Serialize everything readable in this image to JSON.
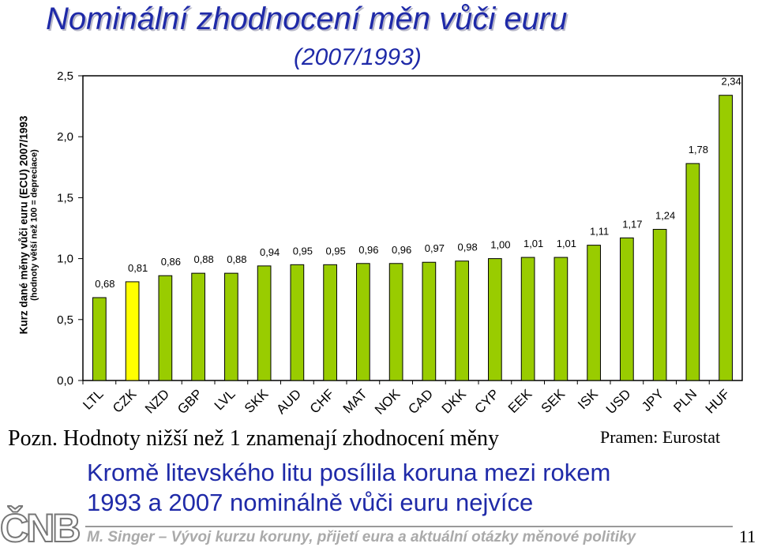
{
  "title": "Nominální zhodnocení měn vůči euru",
  "subtitle": "(2007/1993)",
  "ylabel_line1": "Kurz dané měny vůči euru (ECU) 2007/1993",
  "ylabel_line2": "(hodnoty větší než 100 = depreciace)",
  "note": "Pozn. Hodnoty nižší než 1 znamenají zhodnocení měny",
  "source": "Pramen: Eurostat",
  "highlight_line1": "Kromě litevského litu posílila koruna mezi rokem",
  "highlight_line2": "1993 a 2007 nominálně vůči euru nejvíce",
  "logo_text": "ČNB",
  "footer": "M. Singer – Vývoj kurzu koruny, přijetí eura a aktuální otázky měnové politiky",
  "page_number": "11",
  "colors": {
    "bar": "#99cc00",
    "highlight_bar": "#ffff00",
    "title": "#1f2aa8",
    "highlight_text": "#1f2aa8"
  },
  "chart_data": {
    "type": "bar",
    "categories": [
      "LTL",
      "CZK",
      "NZD",
      "GBP",
      "LVL",
      "SKK",
      "AUD",
      "CHF",
      "MAT",
      "NOK",
      "CAD",
      "DKK",
      "CYP",
      "EEK",
      "SEK",
      "ISK",
      "USD",
      "JPY",
      "PLN",
      "HUF"
    ],
    "values": [
      0.68,
      0.81,
      0.86,
      0.88,
      0.88,
      0.94,
      0.95,
      0.95,
      0.96,
      0.96,
      0.97,
      0.98,
      1.0,
      1.01,
      1.01,
      1.11,
      1.17,
      1.24,
      1.78,
      2.34
    ],
    "data_labels": [
      "0,68",
      "0,81",
      "0,86",
      "0,88",
      "0,88",
      "0,94",
      "0,95",
      "0,95",
      "0,96",
      "0,96",
      "0,97",
      "0,98",
      "1,00",
      "1,01",
      "1,01",
      "1,11",
      "1,17",
      "1,24",
      "1,78",
      "2,34"
    ],
    "highlight_category": "CZK",
    "ylim": [
      0,
      2.5
    ],
    "yticks": [
      0,
      0.5,
      1.0,
      1.5,
      2.0,
      2.5
    ],
    "ytick_labels": [
      "0,0",
      "0,5",
      "1,0",
      "1,5",
      "2,0",
      "2,5"
    ],
    "grid": false,
    "legend": "none"
  }
}
